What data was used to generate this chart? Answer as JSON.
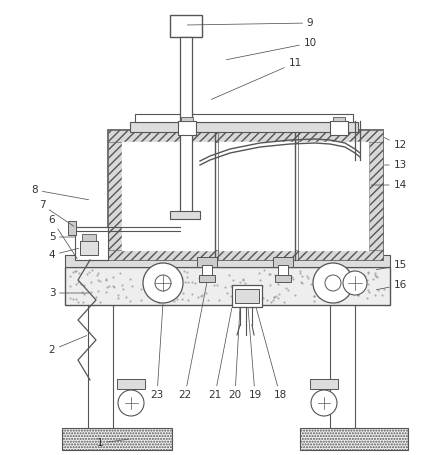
{
  "bg_color": "#ffffff",
  "lc": "#555555",
  "lc2": "#888888",
  "figsize": [
    4.29,
    4.55
  ],
  "dpi": 100,
  "xlim": [
    0,
    429
  ],
  "ylim": [
    0,
    455
  ]
}
